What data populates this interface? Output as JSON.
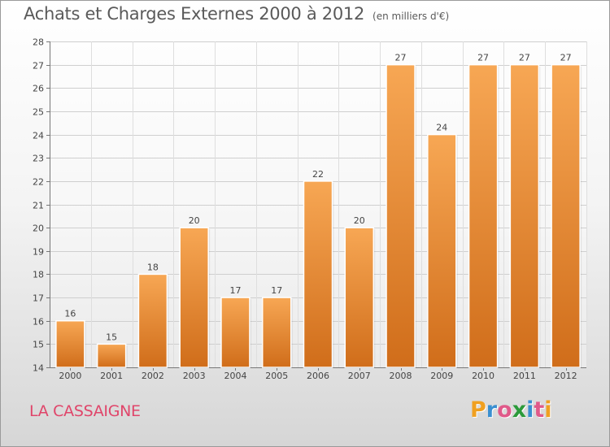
{
  "chart_data": {
    "type": "bar",
    "title": "Achats et Charges Externes 2000 à 2012",
    "subtitle": "(en milliers d'€)",
    "categories": [
      "2000",
      "2001",
      "2002",
      "2003",
      "2004",
      "2005",
      "2006",
      "2007",
      "2008",
      "2009",
      "2010",
      "2011",
      "2012"
    ],
    "values": [
      16,
      15,
      18,
      20,
      17,
      17,
      22,
      20,
      27,
      24,
      27,
      27,
      27
    ],
    "ylim": [
      14,
      28
    ],
    "yticks": [
      14,
      15,
      16,
      17,
      18,
      19,
      20,
      21,
      22,
      23,
      24,
      25,
      26,
      27,
      28
    ],
    "grid": true,
    "bar_color_top": "#f7a754",
    "bar_color_bottom": "#d06d1a"
  },
  "footer": {
    "commune": "LA CASSAIGNE",
    "logo_letters": [
      "P",
      "r",
      "o",
      "x",
      "i",
      "t",
      "i"
    ],
    "logo_colors": [
      "#f0a020",
      "#3a8fd0",
      "#e05a8a",
      "#2b9a3a",
      "#3a8fd0",
      "#e05a8a",
      "#f0a020"
    ]
  }
}
